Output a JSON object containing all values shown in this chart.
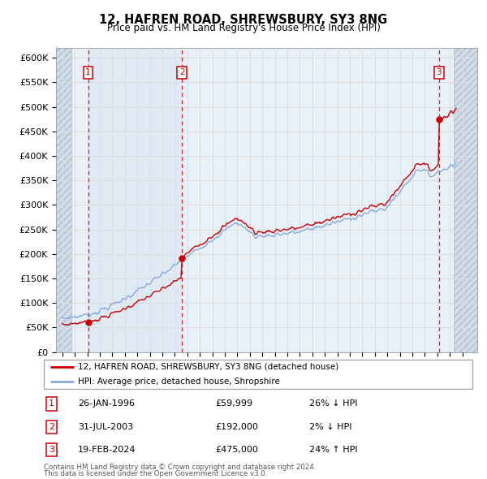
{
  "title": "12, HAFREN ROAD, SHREWSBURY, SY3 8NG",
  "subtitle": "Price paid vs. HM Land Registry's House Price Index (HPI)",
  "purchases": [
    {
      "date_num": 1996.07,
      "price": 59999,
      "label": "1",
      "pct": "26% ↓ HPI",
      "date_str": "26-JAN-1996"
    },
    {
      "date_num": 2003.58,
      "price": 192000,
      "label": "2",
      "pct": "2% ↓ HPI",
      "date_str": "31-JUL-2003"
    },
    {
      "date_num": 2024.13,
      "price": 475000,
      "label": "3",
      "pct": "24% ↑ HPI",
      "date_str": "19-FEB-2024"
    }
  ],
  "ylabel_ticks": [
    "£0",
    "£50K",
    "£100K",
    "£150K",
    "£200K",
    "£250K",
    "£300K",
    "£350K",
    "£400K",
    "£450K",
    "£500K",
    "£550K",
    "£600K"
  ],
  "ytick_values": [
    0,
    50000,
    100000,
    150000,
    200000,
    250000,
    300000,
    350000,
    400000,
    450000,
    500000,
    550000,
    600000
  ],
  "ylim": [
    0,
    620000
  ],
  "xlim_start": 1993.5,
  "xlim_end": 2027.2,
  "legend_line1": "12, HAFREN ROAD, SHREWSBURY, SY3 8NG (detached house)",
  "legend_line2": "HPI: Average price, detached house, Shropshire",
  "footer1": "Contains HM Land Registry data © Crown copyright and database right 2024.",
  "footer2": "This data is licensed under the Open Government Licence v3.0.",
  "hpi_color": "#88aadd",
  "price_color": "#cc0000",
  "grid_color": "#dddddd",
  "label_box_color": "#cc0000",
  "bg_light": "#e8f0f8",
  "hatch_bg": "#d0dce8"
}
